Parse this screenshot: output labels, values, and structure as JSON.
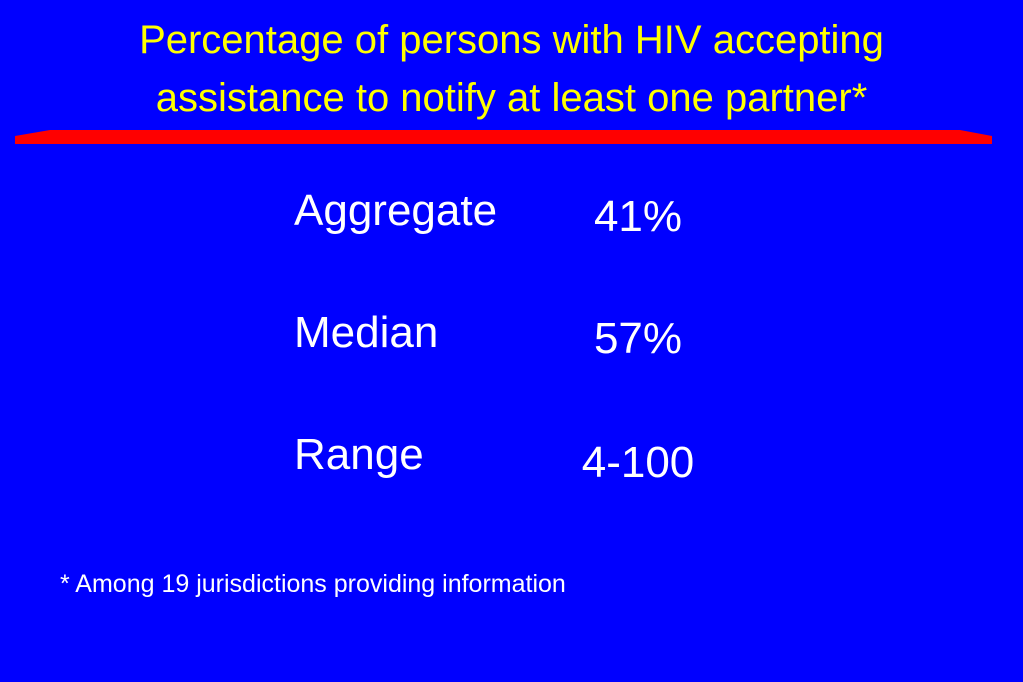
{
  "title": [
    "Percentage of persons with HIV accepting",
    "assistance to notify at least one partner*"
  ],
  "table": {
    "rows": [
      [
        "Aggregate",
        "41%"
      ],
      [
        "Median",
        "57%"
      ],
      [
        "Range",
        "4-100"
      ]
    ]
  },
  "footnote": "* Among 19 jurisdictions providing information"
}
